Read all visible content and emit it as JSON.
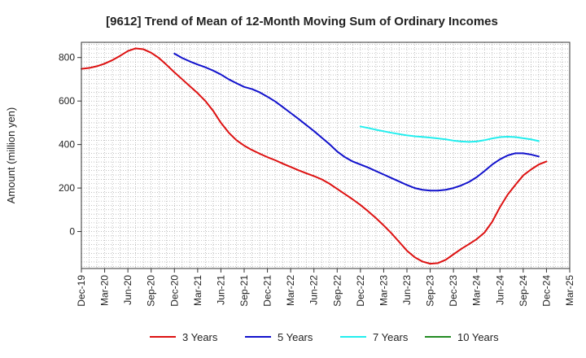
{
  "chart_data": {
    "type": "line",
    "title": "[9612]  Trend of Mean of 12-Month Moving Sum of Ordinary Incomes",
    "xlabel": "",
    "ylabel": "Amount (million yen)",
    "ylim": [
      -170,
      870
    ],
    "yticks": [
      0,
      200,
      400,
      600,
      800
    ],
    "ytick_labels": [
      "0",
      "200",
      "400",
      "600",
      "800"
    ],
    "x_start": "Dec-19",
    "x_end": "Mar-25",
    "x_month_count": 64,
    "x_tick_labels": [
      "Dec-19",
      "Mar-20",
      "Jun-20",
      "Sep-20",
      "Dec-20",
      "Mar-21",
      "Jun-21",
      "Sep-21",
      "Dec-21",
      "Mar-22",
      "Jun-22",
      "Sep-22",
      "Dec-22",
      "Mar-23",
      "Jun-23",
      "Sep-23",
      "Dec-23",
      "Mar-24",
      "Jun-24",
      "Sep-24",
      "Dec-24",
      "Mar-25"
    ],
    "grid": true,
    "legend_position": "bottom",
    "series": [
      {
        "name": "3 Years",
        "color": "#dd1111",
        "start_index": 0,
        "values": [
          748,
          752,
          760,
          772,
          788,
          808,
          830,
          842,
          838,
          822,
          798,
          766,
          732,
          700,
          668,
          636,
          600,
          555,
          500,
          455,
          420,
          395,
          375,
          358,
          342,
          328,
          312,
          297,
          282,
          268,
          255,
          240,
          220,
          196,
          172,
          148,
          122,
          93,
          62,
          28,
          -8,
          -48,
          -88,
          -118,
          -138,
          -148,
          -145,
          -130,
          -105,
          -80,
          -58,
          -35,
          -5,
          45,
          112,
          170,
          215,
          258,
          285,
          308,
          322
        ]
      },
      {
        "name": "5 Years",
        "color": "#1111cc",
        "start_index": 12,
        "values": [
          818,
          798,
          782,
          768,
          755,
          740,
          722,
          700,
          682,
          665,
          655,
          640,
          620,
          598,
          572,
          545,
          518,
          490,
          462,
          432,
          402,
          368,
          342,
          322,
          308,
          294,
          278,
          262,
          246,
          230,
          214,
          200,
          192,
          188,
          188,
          192,
          200,
          212,
          228,
          250,
          278,
          308,
          332,
          350,
          360,
          360,
          354,
          345
        ]
      },
      {
        "name": "7 Years",
        "color": "#22eeee",
        "start_index": 36,
        "values": [
          483,
          476,
          468,
          461,
          454,
          448,
          442,
          438,
          435,
          432,
          428,
          424,
          418,
          414,
          412,
          414,
          420,
          428,
          434,
          436,
          434,
          429,
          424,
          416
        ]
      },
      {
        "name": "10 Years",
        "color": "#228b22",
        "start_index": 0,
        "values": []
      }
    ]
  }
}
